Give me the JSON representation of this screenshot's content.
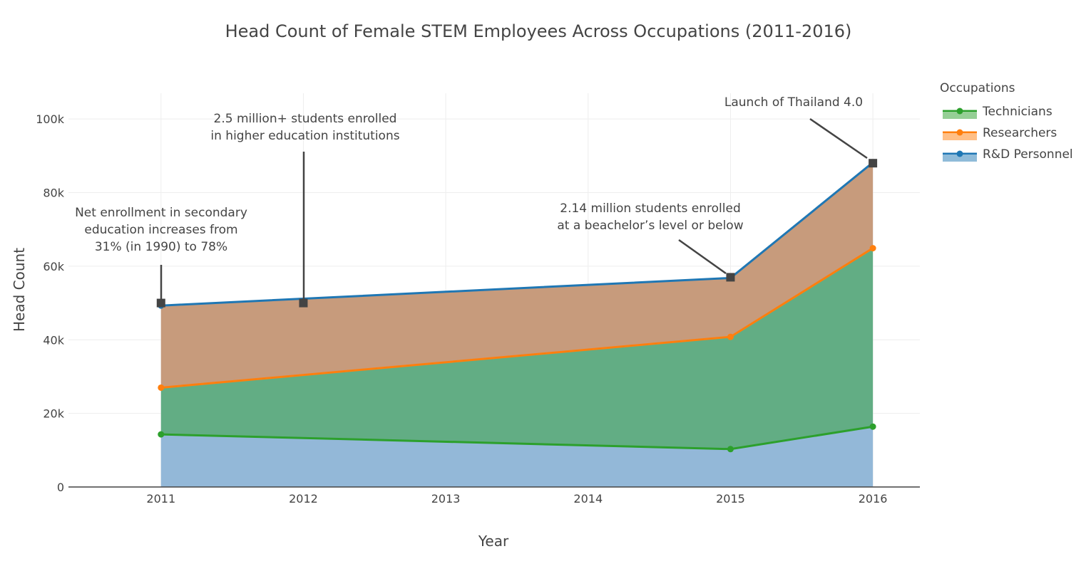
{
  "chart_data": {
    "type": "area",
    "title": "Head Count of Female STEM Employees Across Occupations (2011-2016)",
    "xlabel": "Year",
    "ylabel": "Head Count",
    "x": [
      2011,
      2012,
      2013,
      2014,
      2015,
      2016
    ],
    "x_tick_labels": [
      "2011",
      "2012",
      "2013",
      "2014",
      "2015",
      "2016"
    ],
    "ylim": [
      0,
      107000
    ],
    "y_ticks": [
      0,
      20000,
      40000,
      60000,
      80000,
      100000
    ],
    "y_tick_labels": [
      "0",
      "20k",
      "40k",
      "60k",
      "80k",
      "100k"
    ],
    "stacked": true,
    "series": [
      {
        "name": "Technicians",
        "color": "#2ca02c",
        "marker_x": [
          2011,
          2015,
          2016
        ],
        "x": [
          2011,
          2015,
          2016
        ],
        "values": [
          14300,
          10300,
          16400
        ]
      },
      {
        "name": "Researchers",
        "color": "#ff7f0e",
        "marker_x": [
          2011,
          2015,
          2016
        ],
        "x": [
          2011,
          2015,
          2016
        ],
        "values": [
          12700,
          30500,
          48500
        ]
      },
      {
        "name": "R&D Personnel",
        "color": "#1f77b4",
        "marker_x": [
          2011,
          2015,
          2016
        ],
        "x": [
          2011,
          2015,
          2016
        ],
        "values": [
          22300,
          16000,
          23300
        ]
      }
    ],
    "fills": {
      "bottom": "#93b8d8",
      "middle": "#62ad84",
      "top": "#c79b7c"
    },
    "legend": {
      "title": "Occupations",
      "position": "right"
    },
    "grid": true,
    "annotations": [
      {
        "x": 2011,
        "y": 50000,
        "lines": [
          "Net enrollment in secondary",
          "education increases from",
          "31% (in 1990) to 78%"
        ]
      },
      {
        "x": 2012,
        "y": 50000,
        "lines": [
          "2.5 million+ students enrolled",
          "in higher education institutions"
        ]
      },
      {
        "x": 2015,
        "y": 57000,
        "lines": [
          "2.14 million students enrolled",
          "at a beachelor’s level or below"
        ]
      },
      {
        "x": 2016,
        "y": 88000,
        "lines": [
          "Launch of Thailand 4.0"
        ]
      }
    ]
  }
}
